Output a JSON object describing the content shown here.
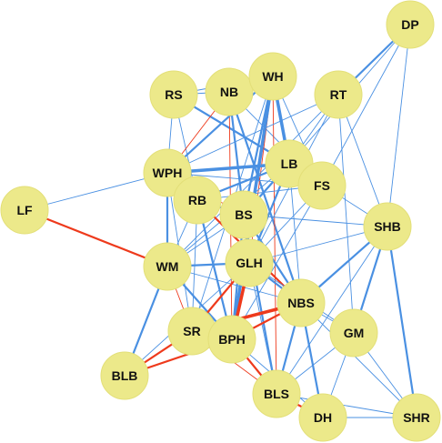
{
  "graph": {
    "colors": {
      "node_fill": "#ece98a",
      "node_stroke": "#e3df78",
      "edge_positive": "#4a90e2",
      "edge_negative": "#ee3a1c"
    },
    "nodes": [
      {
        "id": "DP",
        "label": "DP"
      },
      {
        "id": "RS",
        "label": "RS"
      },
      {
        "id": "NB",
        "label": "NB"
      },
      {
        "id": "WH",
        "label": "WH"
      },
      {
        "id": "RT",
        "label": "RT"
      },
      {
        "id": "WPH",
        "label": "WPH"
      },
      {
        "id": "LB",
        "label": "LB"
      },
      {
        "id": "FS",
        "label": "FS"
      },
      {
        "id": "RB",
        "label": "RB"
      },
      {
        "id": "BS",
        "label": "BS"
      },
      {
        "id": "LF",
        "label": "LF"
      },
      {
        "id": "SHB",
        "label": "SHB"
      },
      {
        "id": "WM",
        "label": "WM"
      },
      {
        "id": "GLH",
        "label": "GLH"
      },
      {
        "id": "NBS",
        "label": "NBS"
      },
      {
        "id": "SR",
        "label": "SR"
      },
      {
        "id": "BPH",
        "label": "BPH"
      },
      {
        "id": "GM",
        "label": "GM"
      },
      {
        "id": "BLB",
        "label": "BLB"
      },
      {
        "id": "BLS",
        "label": "BLS"
      },
      {
        "id": "DH",
        "label": "DH"
      },
      {
        "id": "SHR",
        "label": "SHR"
      }
    ],
    "edges": [
      {
        "source": "DP",
        "target": "RT",
        "sign": "positive",
        "weight": 2
      },
      {
        "source": "DP",
        "target": "LB",
        "sign": "positive",
        "weight": 1
      },
      {
        "source": "DP",
        "target": "FS",
        "sign": "positive",
        "weight": 1
      },
      {
        "source": "DP",
        "target": "SHB",
        "sign": "positive",
        "weight": 1
      },
      {
        "source": "RS",
        "target": "NB",
        "sign": "positive",
        "weight": 1
      },
      {
        "source": "RS",
        "target": "WH",
        "sign": "positive",
        "weight": 1
      },
      {
        "source": "RS",
        "target": "LB",
        "sign": "positive",
        "weight": 2
      },
      {
        "source": "RS",
        "target": "WPH",
        "sign": "positive",
        "weight": 1
      },
      {
        "source": "RS",
        "target": "RB",
        "sign": "positive",
        "weight": 1
      },
      {
        "source": "NB",
        "target": "WH",
        "sign": "positive",
        "weight": 1
      },
      {
        "source": "NB",
        "target": "WPH",
        "sign": "negative",
        "weight": 1
      },
      {
        "source": "NB",
        "target": "BS",
        "sign": "negative",
        "weight": 1
      },
      {
        "source": "NB",
        "target": "GLH",
        "sign": "positive",
        "weight": 2
      },
      {
        "source": "NB",
        "target": "NBS",
        "sign": "positive",
        "weight": 2
      },
      {
        "source": "NB",
        "target": "BPH",
        "sign": "negative",
        "weight": 1
      },
      {
        "source": "NB",
        "target": "FS",
        "sign": "positive",
        "weight": 1
      },
      {
        "source": "WH",
        "target": "LB",
        "sign": "positive",
        "weight": 3
      },
      {
        "source": "WH",
        "target": "FS",
        "sign": "positive",
        "weight": 1
      },
      {
        "source": "WH",
        "target": "BS",
        "sign": "positive",
        "weight": 2
      },
      {
        "source": "WH",
        "target": "GLH",
        "sign": "negative",
        "weight": 1
      },
      {
        "source": "WH",
        "target": "WPH",
        "sign": "positive",
        "weight": 2
      },
      {
        "source": "WH",
        "target": "BPH",
        "sign": "positive",
        "weight": 3
      },
      {
        "source": "WH",
        "target": "BLS",
        "sign": "negative",
        "weight": 1
      },
      {
        "source": "WH",
        "target": "SR",
        "sign": "positive",
        "weight": 1
      },
      {
        "source": "RT",
        "target": "WPH",
        "sign": "positive",
        "weight": 1
      },
      {
        "source": "RT",
        "target": "LB",
        "sign": "positive",
        "weight": 1
      },
      {
        "source": "RT",
        "target": "SHB",
        "sign": "positive",
        "weight": 1
      },
      {
        "source": "RT",
        "target": "WM",
        "sign": "positive",
        "weight": 1
      },
      {
        "source": "RT",
        "target": "GLH",
        "sign": "positive",
        "weight": 1
      },
      {
        "source": "RT",
        "target": "GM",
        "sign": "positive",
        "weight": 1
      },
      {
        "source": "WPH",
        "target": "LB",
        "sign": "positive",
        "weight": 3
      },
      {
        "source": "WPH",
        "target": "BS",
        "sign": "negative",
        "weight": 1
      },
      {
        "source": "WPH",
        "target": "WM",
        "sign": "positive",
        "weight": 2
      },
      {
        "source": "WPH",
        "target": "SR",
        "sign": "positive",
        "weight": 1
      },
      {
        "source": "WPH",
        "target": "FS",
        "sign": "positive",
        "weight": 1
      },
      {
        "source": "LB",
        "target": "RB",
        "sign": "positive",
        "weight": 2
      },
      {
        "source": "LB",
        "target": "BS",
        "sign": "positive",
        "weight": 2
      },
      {
        "source": "LB",
        "target": "GLH",
        "sign": "positive",
        "weight": 2
      },
      {
        "source": "LB",
        "target": "NBS",
        "sign": "positive",
        "weight": 1
      },
      {
        "source": "LB",
        "target": "SHB",
        "sign": "positive",
        "weight": 1
      },
      {
        "source": "LB",
        "target": "WM",
        "sign": "positive",
        "weight": 1
      },
      {
        "source": "FS",
        "target": "GLH",
        "sign": "positive",
        "weight": 1
      },
      {
        "source": "FS",
        "target": "BPH",
        "sign": "positive",
        "weight": 1
      },
      {
        "source": "FS",
        "target": "RB",
        "sign": "positive",
        "weight": 1
      },
      {
        "source": "RB",
        "target": "BS",
        "sign": "positive",
        "weight": 2
      },
      {
        "source": "RB",
        "target": "NBS",
        "sign": "negative",
        "weight": 2
      },
      {
        "source": "RB",
        "target": "BPH",
        "sign": "positive",
        "weight": 2
      },
      {
        "source": "RB",
        "target": "WM",
        "sign": "positive",
        "weight": 1
      },
      {
        "source": "RB",
        "target": "SR",
        "sign": "positive",
        "weight": 1
      },
      {
        "source": "BS",
        "target": "GLH",
        "sign": "positive",
        "weight": 2
      },
      {
        "source": "BS",
        "target": "NBS",
        "sign": "positive",
        "weight": 2
      },
      {
        "source": "BS",
        "target": "BLS",
        "sign": "positive",
        "weight": 2
      },
      {
        "source": "BS",
        "target": "BPH",
        "sign": "positive",
        "weight": 2
      },
      {
        "source": "BS",
        "target": "WM",
        "sign": "positive",
        "weight": 1
      },
      {
        "source": "BS",
        "target": "SHB",
        "sign": "positive",
        "weight": 1
      },
      {
        "source": "LF",
        "target": "WPH",
        "sign": "positive",
        "weight": 1
      },
      {
        "source": "LF",
        "target": "WM",
        "sign": "negative",
        "weight": 2
      },
      {
        "source": "SHB",
        "target": "GLH",
        "sign": "positive",
        "weight": 1
      },
      {
        "source": "SHB",
        "target": "NBS",
        "sign": "positive",
        "weight": 2
      },
      {
        "source": "SHB",
        "target": "GM",
        "sign": "positive",
        "weight": 2
      },
      {
        "source": "SHB",
        "target": "SHR",
        "sign": "positive",
        "weight": 2
      },
      {
        "source": "SHB",
        "target": "BLS",
        "sign": "positive",
        "weight": 1
      },
      {
        "source": "WM",
        "target": "GLH",
        "sign": "positive",
        "weight": 2
      },
      {
        "source": "WM",
        "target": "SR",
        "sign": "negative",
        "weight": 1
      },
      {
        "source": "WM",
        "target": "BPH",
        "sign": "positive",
        "weight": 2
      },
      {
        "source": "WM",
        "target": "BLB",
        "sign": "positive",
        "weight": 2
      },
      {
        "source": "WM",
        "target": "NBS",
        "sign": "positive",
        "weight": 1
      },
      {
        "source": "GLH",
        "target": "NBS",
        "sign": "positive",
        "weight": 2
      },
      {
        "source": "GLH",
        "target": "SR",
        "sign": "negative",
        "weight": 2
      },
      {
        "source": "GLH",
        "target": "BPH",
        "sign": "negative",
        "weight": 3
      },
      {
        "source": "GLH",
        "target": "GM",
        "sign": "positive",
        "weight": 1
      },
      {
        "source": "GLH",
        "target": "BLS",
        "sign": "positive",
        "weight": 1
      },
      {
        "source": "GLH",
        "target": "BLB",
        "sign": "positive",
        "weight": 1
      },
      {
        "source": "NBS",
        "target": "SR",
        "sign": "negative",
        "weight": 3
      },
      {
        "source": "NBS",
        "target": "BPH",
        "sign": "negative",
        "weight": 2
      },
      {
        "source": "NBS",
        "target": "GM",
        "sign": "positive",
        "weight": 1
      },
      {
        "source": "NBS",
        "target": "BLS",
        "sign": "positive",
        "weight": 2
      },
      {
        "source": "NBS",
        "target": "DH",
        "sign": "positive",
        "weight": 2
      },
      {
        "source": "NBS",
        "target": "SHR",
        "sign": "positive",
        "weight": 1
      },
      {
        "source": "SR",
        "target": "BPH",
        "sign": "positive",
        "weight": 3
      },
      {
        "source": "SR",
        "target": "BLB",
        "sign": "negative",
        "weight": 2
      },
      {
        "source": "SR",
        "target": "BLS",
        "sign": "negative",
        "weight": 1
      },
      {
        "source": "BPH",
        "target": "BLB",
        "sign": "negative",
        "weight": 2
      },
      {
        "source": "BPH",
        "target": "BLS",
        "sign": "negative",
        "weight": 2
      },
      {
        "source": "BPH",
        "target": "DH",
        "sign": "positive",
        "weight": 1
      },
      {
        "source": "GM",
        "target": "BLS",
        "sign": "positive",
        "weight": 1
      },
      {
        "source": "GM",
        "target": "DH",
        "sign": "positive",
        "weight": 1
      },
      {
        "source": "GM",
        "target": "SHR",
        "sign": "positive",
        "weight": 1
      },
      {
        "source": "BLS",
        "target": "DH",
        "sign": "negative",
        "weight": 2
      },
      {
        "source": "BLS",
        "target": "SHR",
        "sign": "positive",
        "weight": 1
      },
      {
        "source": "DH",
        "target": "SHR",
        "sign": "positive",
        "weight": 1
      }
    ]
  }
}
